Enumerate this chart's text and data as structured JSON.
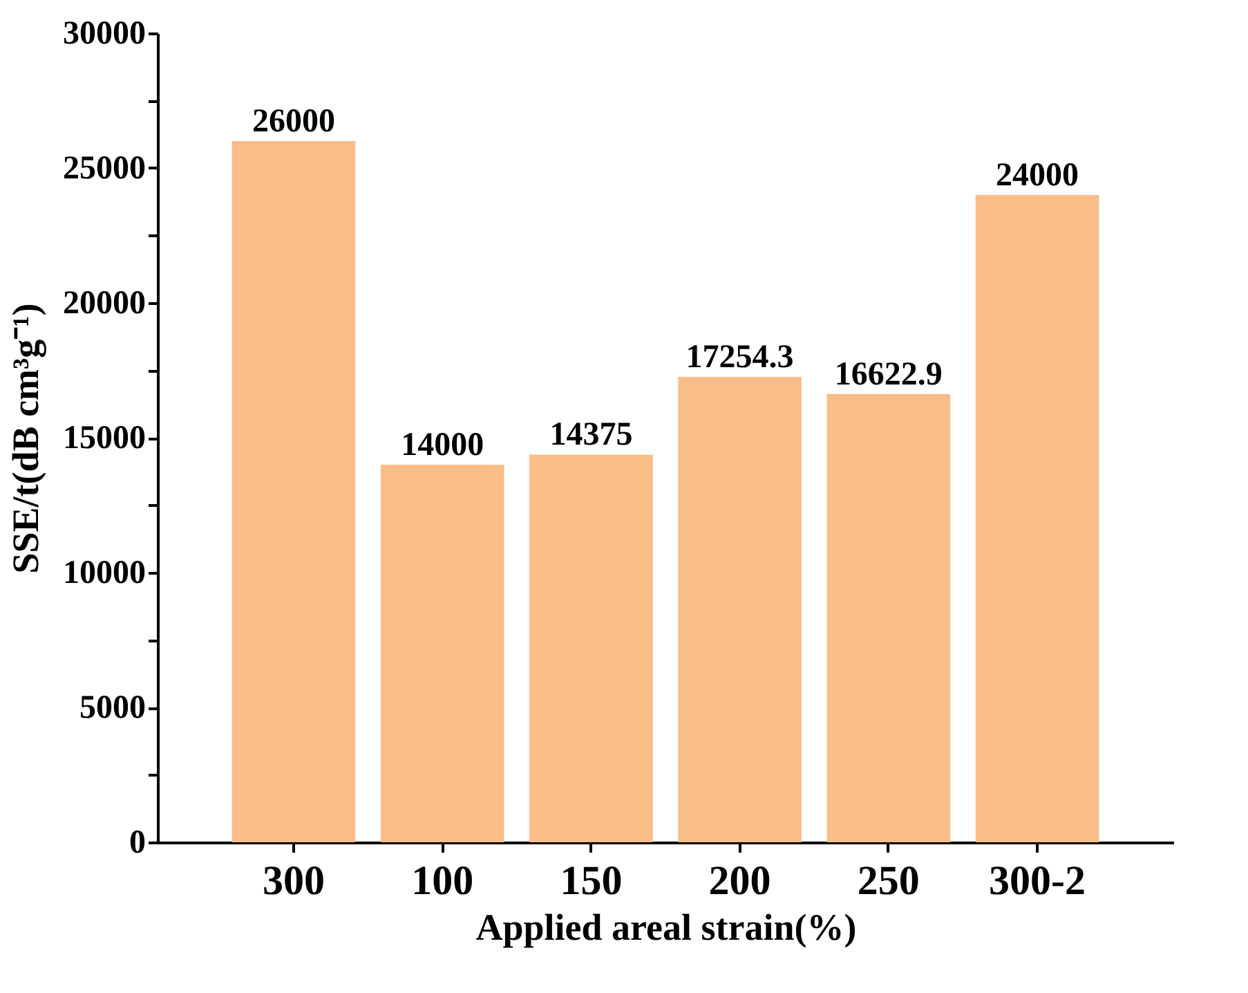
{
  "chart_data": {
    "type": "bar",
    "xlabel": "Applied areal strain(%)",
    "ylabel": "SSE/t(dB cm³g⁻¹)",
    "categories": [
      "300",
      "100",
      "150",
      "200",
      "250",
      "300-2"
    ],
    "values": [
      26000,
      14000,
      14375,
      17254.3,
      16622.9,
      24000
    ],
    "color": "#f9bd88",
    "data_labels": true,
    "ylim": [
      0,
      30000
    ],
    "yticks": [
      0,
      {
        "value": 2500,
        "label": null
      },
      5000,
      {
        "value": 7500,
        "label": null
      },
      10000,
      {
        "value": 12500,
        "label": null
      },
      15000,
      {
        "value": 17500,
        "label": null
      },
      20000,
      {
        "value": 22500,
        "label": null
      },
      25000,
      {
        "value": 27500,
        "label": null
      },
      30000
    ],
    "grid": false
  }
}
